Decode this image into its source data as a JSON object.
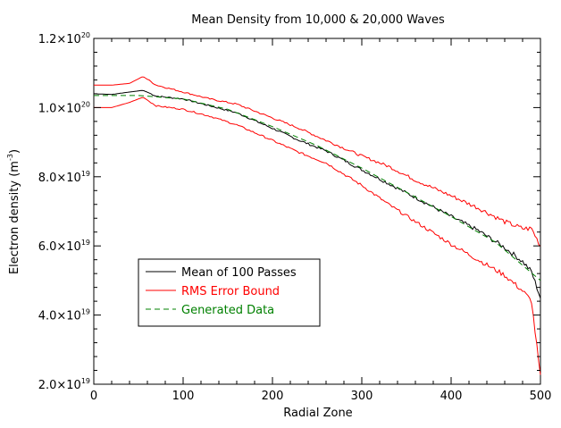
{
  "chart_data": {
    "type": "line",
    "title": "Mean Density from 10,000 & 20,000 Waves",
    "xlabel": "Radial Zone",
    "ylabel": {
      "text": "Electron density (m",
      "sup": "-3",
      "close": ")"
    },
    "xlim": [
      0,
      500
    ],
    "ylim": [
      2e+19,
      1.2e+20
    ],
    "xticks": [
      {
        "value": 0,
        "label": "0"
      },
      {
        "value": 100,
        "label": "100"
      },
      {
        "value": 200,
        "label": "200"
      },
      {
        "value": 300,
        "label": "300"
      },
      {
        "value": 400,
        "label": "400"
      },
      {
        "value": 500,
        "label": "500"
      }
    ],
    "yticks": [
      {
        "value": 2e+19,
        "mant": "2.0×10",
        "exp": "19"
      },
      {
        "value": 4e+19,
        "mant": "4.0×10",
        "exp": "19"
      },
      {
        "value": 6e+19,
        "mant": "6.0×10",
        "exp": "19"
      },
      {
        "value": 8e+19,
        "mant": "8.0×10",
        "exp": "19"
      },
      {
        "value": 1e+20,
        "mant": "1.0×10",
        "exp": "20"
      },
      {
        "value": 1.2e+20,
        "mant": "1.2×10",
        "exp": "20"
      }
    ],
    "grid": false,
    "legend_position": "lower-left",
    "series": [
      {
        "name": "Mean of 100 Passes",
        "color": "#000000",
        "dash": "solid",
        "x": [
          0,
          20,
          40,
          55,
          70,
          100,
          130,
          160,
          200,
          230,
          260,
          300,
          330,
          360,
          400,
          430,
          460,
          480,
          490,
          500
        ],
        "y": [
          1.04e+20,
          1.038e+20,
          1.045e+20,
          1.05e+20,
          1.033e+20,
          1.025e+20,
          1.005e+20,
          9.85e+19,
          9.4e+19,
          9.05e+19,
          8.75e+19,
          8.2e+19,
          7.8e+19,
          7.4e+19,
          6.85e+19,
          6.45e+19,
          5.95e+19,
          5.55e+19,
          5.25e+19,
          4.5e+19
        ]
      },
      {
        "name": "RMS Error Bound",
        "color": "#ff0000",
        "dash": "solid",
        "x": [
          0,
          20,
          40,
          55,
          70,
          100,
          130,
          160,
          200,
          230,
          260,
          300,
          330,
          360,
          400,
          430,
          460,
          480,
          490,
          500
        ],
        "y": [
          1.065e+20,
          1.065e+20,
          1.07e+20,
          1.09e+20,
          1.065e+20,
          1.045e+20,
          1.025e+20,
          1.01e+20,
          9.7e+19,
          9.4e+19,
          9.05e+19,
          8.6e+19,
          8.3e+19,
          7.9e+19,
          7.45e+19,
          7.1e+19,
          6.7e+19,
          6.5e+19,
          6.5e+19,
          6e+19
        ]
      },
      {
        "name": "",
        "color": "#ff0000",
        "dash": "solid",
        "x": [
          0,
          20,
          40,
          55,
          70,
          100,
          130,
          160,
          200,
          230,
          260,
          300,
          330,
          360,
          400,
          430,
          460,
          480,
          490,
          500
        ],
        "y": [
          1e+20,
          1e+20,
          1.015e+20,
          1.03e+20,
          1.005e+20,
          9.95e+19,
          9.75e+19,
          9.5e+19,
          9.05e+19,
          8.7e+19,
          8.4e+19,
          7.75e+19,
          7.2e+19,
          6.7e+19,
          6.05e+19,
          5.6e+19,
          5.15e+19,
          4.7e+19,
          4.4e+19,
          2.2e+19
        ]
      },
      {
        "name": "Generated Data",
        "color": "#008000",
        "dash": "dashed",
        "x": [
          0,
          50,
          100,
          150,
          200,
          250,
          300,
          350,
          400,
          450,
          500
        ],
        "y": [
          1.035e+20,
          1.035e+20,
          1.025e+20,
          9.95e+19,
          9.45e+19,
          8.9e+19,
          8.25e+19,
          7.55e+19,
          6.85e+19,
          6.1e+19,
          5e+19
        ]
      }
    ],
    "legend": [
      {
        "label": "Mean of 100 Passes",
        "color": "#000000",
        "dash": "solid"
      },
      {
        "label": "RMS Error Bound",
        "color": "#ff0000",
        "dash": "solid"
      },
      {
        "label": "Generated Data",
        "color": "#008000",
        "dash": "dashed"
      }
    ]
  }
}
